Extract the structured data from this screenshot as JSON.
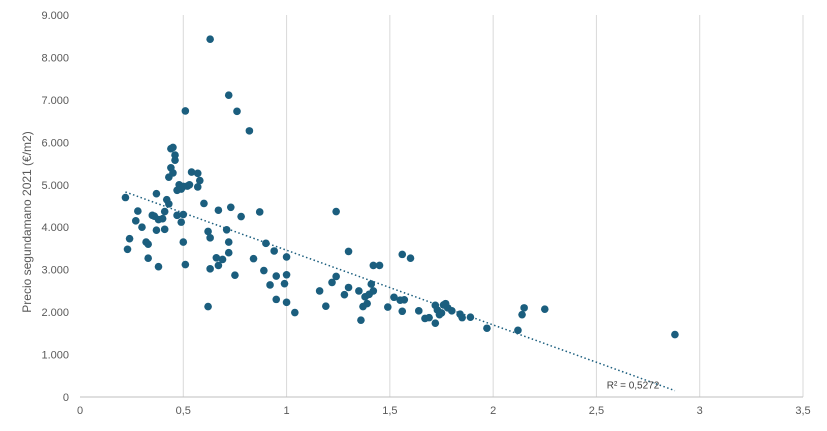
{
  "chart_data": {
    "type": "scatter",
    "ylabel": "Precio segundamano 2021 (€/m2)",
    "xlim": [
      0,
      3.5
    ],
    "ylim": [
      0,
      9000
    ],
    "x_ticks": [
      0,
      0.5,
      1,
      1.5,
      2,
      2.5,
      3,
      3.5
    ],
    "y_ticks": [
      0,
      1000,
      2000,
      3000,
      4000,
      5000,
      6000,
      7000,
      8000,
      9000
    ],
    "x_tick_labels": [
      "0",
      "0,5",
      "1",
      "1,5",
      "2",
      "2,5",
      "3",
      "3,5"
    ],
    "y_tick_labels": [
      "0",
      "1.000",
      "2.000",
      "3.000",
      "4.000",
      "5.000",
      "6.000",
      "7.000",
      "8.000",
      "9.000"
    ],
    "grid": {
      "vertical": true,
      "horizontal": false
    },
    "marker_color": "#1b5e7e",
    "trendline": {
      "type": "linear",
      "style": "dotted",
      "x": [
        0.22,
        2.88
      ],
      "y": [
        4830,
        150
      ],
      "label": "R² = 0,5272"
    },
    "points": [
      [
        0.22,
        4700
      ],
      [
        0.23,
        3480
      ],
      [
        0.24,
        3730
      ],
      [
        0.27,
        4150
      ],
      [
        0.28,
        4380
      ],
      [
        0.3,
        4000
      ],
      [
        0.32,
        3650
      ],
      [
        0.33,
        3600
      ],
      [
        0.33,
        3270
      ],
      [
        0.35,
        4280
      ],
      [
        0.36,
        4260
      ],
      [
        0.37,
        4790
      ],
      [
        0.37,
        3930
      ],
      [
        0.38,
        4180
      ],
      [
        0.38,
        3070
      ],
      [
        0.4,
        4200
      ],
      [
        0.41,
        4370
      ],
      [
        0.41,
        3950
      ],
      [
        0.42,
        4650
      ],
      [
        0.43,
        4550
      ],
      [
        0.43,
        5180
      ],
      [
        0.44,
        5400
      ],
      [
        0.44,
        5850
      ],
      [
        0.45,
        5280
      ],
      [
        0.45,
        5880
      ],
      [
        0.46,
        5580
      ],
      [
        0.46,
        5700
      ],
      [
        0.47,
        4280
      ],
      [
        0.47,
        4870
      ],
      [
        0.48,
        5000
      ],
      [
        0.49,
        4900
      ],
      [
        0.49,
        4120
      ],
      [
        0.5,
        4300
      ],
      [
        0.5,
        4960
      ],
      [
        0.5,
        3650
      ],
      [
        0.51,
        3120
      ],
      [
        0.51,
        6740
      ],
      [
        0.52,
        4970
      ],
      [
        0.53,
        5000
      ],
      [
        0.54,
        5300
      ],
      [
        0.57,
        4950
      ],
      [
        0.57,
        5270
      ],
      [
        0.58,
        5100
      ],
      [
        0.6,
        4560
      ],
      [
        0.62,
        3900
      ],
      [
        0.62,
        2130
      ],
      [
        0.63,
        3750
      ],
      [
        0.63,
        3020
      ],
      [
        0.63,
        8430
      ],
      [
        0.66,
        3280
      ],
      [
        0.67,
        3100
      ],
      [
        0.67,
        4400
      ],
      [
        0.69,
        3240
      ],
      [
        0.71,
        3940
      ],
      [
        0.72,
        3650
      ],
      [
        0.72,
        3400
      ],
      [
        0.72,
        7110
      ],
      [
        0.73,
        4470
      ],
      [
        0.75,
        2870
      ],
      [
        0.76,
        6730
      ],
      [
        0.78,
        4250
      ],
      [
        0.82,
        6270
      ],
      [
        0.84,
        3260
      ],
      [
        0.87,
        4360
      ],
      [
        0.89,
        2980
      ],
      [
        0.9,
        3620
      ],
      [
        0.92,
        2640
      ],
      [
        0.94,
        3440
      ],
      [
        0.95,
        2300
      ],
      [
        0.95,
        2850
      ],
      [
        0.99,
        2670
      ],
      [
        1,
        2880
      ],
      [
        1,
        2230
      ],
      [
        1,
        3300
      ],
      [
        1.04,
        1990
      ],
      [
        1.16,
        2500
      ],
      [
        1.19,
        2140
      ],
      [
        1.22,
        2700
      ],
      [
        1.24,
        2840
      ],
      [
        1.24,
        4370
      ],
      [
        1.28,
        2410
      ],
      [
        1.3,
        2580
      ],
      [
        1.3,
        3430
      ],
      [
        1.35,
        2500
      ],
      [
        1.36,
        1810
      ],
      [
        1.37,
        2130
      ],
      [
        1.38,
        2360
      ],
      [
        1.39,
        2200
      ],
      [
        1.4,
        2420
      ],
      [
        1.41,
        2660
      ],
      [
        1.42,
        3100
      ],
      [
        1.42,
        2500
      ],
      [
        1.45,
        3100
      ],
      [
        1.49,
        2120
      ],
      [
        1.52,
        2350
      ],
      [
        1.55,
        2280
      ],
      [
        1.56,
        2020
      ],
      [
        1.56,
        3360
      ],
      [
        1.57,
        2290
      ],
      [
        1.6,
        3270
      ],
      [
        1.64,
        2030
      ],
      [
        1.67,
        1850
      ],
      [
        1.69,
        1870
      ],
      [
        1.72,
        2160
      ],
      [
        1.72,
        1740
      ],
      [
        1.73,
        2050
      ],
      [
        1.74,
        1940
      ],
      [
        1.75,
        1980
      ],
      [
        1.76,
        2170
      ],
      [
        1.77,
        2200
      ],
      [
        1.78,
        2100
      ],
      [
        1.8,
        2030
      ],
      [
        1.84,
        1950
      ],
      [
        1.85,
        1870
      ],
      [
        1.89,
        1880
      ],
      [
        1.97,
        1620
      ],
      [
        2.12,
        1570
      ],
      [
        2.14,
        1940
      ],
      [
        2.15,
        2100
      ],
      [
        2.25,
        2070
      ],
      [
        2.88,
        1470
      ]
    ]
  }
}
